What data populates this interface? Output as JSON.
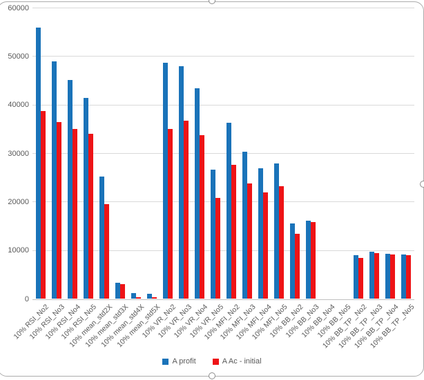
{
  "chart_data": {
    "type": "bar",
    "title": "",
    "xlabel": "",
    "ylabel": "",
    "ylim": [
      0,
      60000
    ],
    "y_ticks": [
      0,
      10000,
      20000,
      30000,
      40000,
      50000,
      60000
    ],
    "grid": true,
    "legend_position": "bottom",
    "categories": [
      "10% RSI_No2",
      "10% RSI_No3",
      "10% RSI_No4",
      "10% RSI_No5",
      "10% mean_std2X",
      "10% mean_std3X",
      "10% mean_std4X",
      "10% mean_std5X",
      "10% VR_No2",
      "10% VR_No3",
      "10% VR_No4",
      "10% VR_No5",
      "10% MFI_No2",
      "10% MFI_No3",
      "10% MFI_No4",
      "10% MFI_No5",
      "10% BB_No2",
      "10% BB_No3",
      "10% BB_No4",
      "10% BB_No5",
      "10% BB_TP _No2",
      "10% BB_TP _No3",
      "10% BB_TP _No4",
      "10% BB_TP _No5"
    ],
    "series": [
      {
        "name": "A profit",
        "color": "#1a73b9",
        "values": [
          56000,
          49000,
          45100,
          41500,
          25200,
          3400,
          1200,
          1000,
          48700,
          48000,
          43400,
          26700,
          36300,
          30400,
          27000,
          27900,
          15500,
          16200,
          0,
          0,
          9000,
          9700,
          9300,
          9200
        ]
      },
      {
        "name": "A Ac - initial",
        "color": "#ee1316",
        "values": [
          38700,
          36400,
          35000,
          34000,
          19500,
          3100,
          400,
          300,
          35100,
          36800,
          33700,
          20900,
          27600,
          23800,
          21900,
          23300,
          13400,
          15800,
          0,
          0,
          8500,
          9400,
          9100,
          9000
        ]
      }
    ]
  },
  "ui": {
    "colors": {
      "grid": "#d9d9d9",
      "axis": "#bfbfbf",
      "tick_text": "#595959",
      "frame_border": "#ababab",
      "background": "#ffffff"
    }
  }
}
